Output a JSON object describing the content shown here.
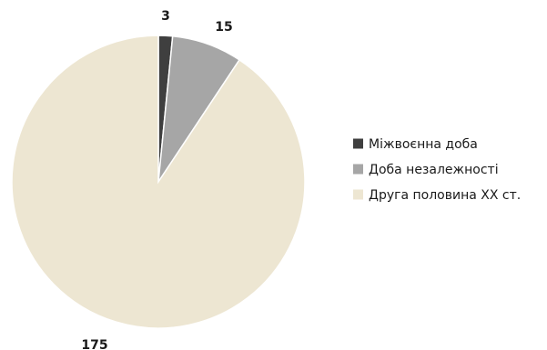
{
  "chart_data": {
    "type": "pie",
    "title": "",
    "categories": [
      "Міжвоєнна доба",
      "Доба незалежності",
      "Друга половина XX ст."
    ],
    "values": [
      3,
      15,
      175
    ],
    "data_labels": [
      "3",
      "15",
      "175"
    ],
    "colors": [
      "#3f3f3f",
      "#a6a6a6",
      "#ede6d2"
    ],
    "legend": {
      "position": "right",
      "entries": [
        "Міжвоєнна доба",
        "Доба незалежності",
        "Друга половина XX ст."
      ]
    }
  }
}
